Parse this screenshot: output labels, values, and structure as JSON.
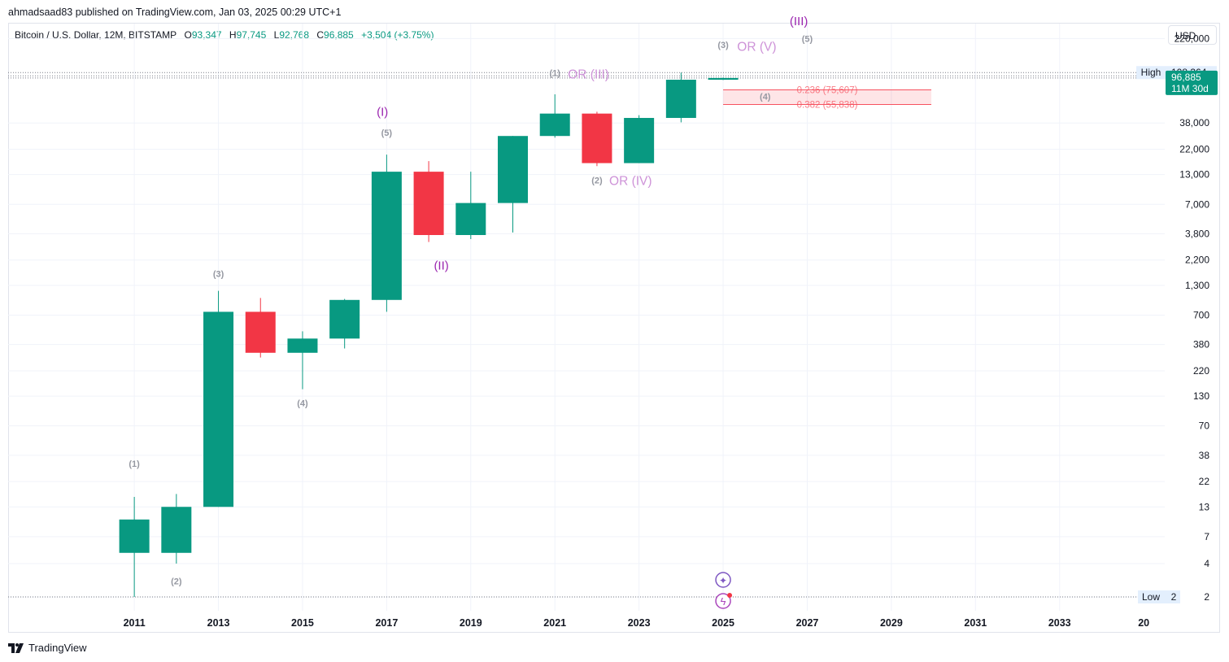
{
  "header": {
    "published_text": "ahmadsaad83 published on TradingView.com, Jan 03, 2025 00:29 UTC+1",
    "symbol": "Bitcoin / U.S. Dollar, 12M, BITSTAMP",
    "open_label": "O",
    "open": "93,347",
    "high_label": "H",
    "high": "97,745",
    "low_label": "L",
    "low": "92,768",
    "close_label": "C",
    "close": "96,885",
    "change": "+3,504 (+3.75%)"
  },
  "currency_button": "USD",
  "brand": {
    "name": "TradingView",
    "icon": "tradingview-logo-icon"
  },
  "colors": {
    "up": "#089981",
    "down": "#f23645",
    "grid": "#f0f3fa",
    "wave": "#9c27b0",
    "wave_light": "#ce93d8",
    "fib": "#f7525f"
  },
  "chart_data": {
    "type": "candlestick",
    "title": "Bitcoin / U.S. Dollar, 12M, BITSTAMP",
    "scale": "log",
    "ylim": [
      1.5,
      300000
    ],
    "xlim": [
      2008,
      2035.5
    ],
    "x_ticks": [
      "2011",
      "2013",
      "2015",
      "2017",
      "2019",
      "2021",
      "2023",
      "2025",
      "2027",
      "2029",
      "2031",
      "2033",
      "20"
    ],
    "y_ticks": [
      "220,000",
      "38,000",
      "22,000",
      "13,000",
      "7,000",
      "3,800",
      "2,200",
      "1,300",
      "700",
      "380",
      "220",
      "130",
      "70",
      "38",
      "22",
      "13",
      "7",
      "4",
      "2"
    ],
    "candles": [
      {
        "year": 2011,
        "open": 5,
        "high": 16,
        "low": 2,
        "close": 10
      },
      {
        "year": 2012,
        "open": 5,
        "high": 17,
        "low": 4,
        "close": 13
      },
      {
        "year": 2013,
        "open": 13,
        "high": 1160,
        "low": 13,
        "close": 750
      },
      {
        "year": 2014,
        "open": 750,
        "high": 1000,
        "low": 290,
        "close": 320
      },
      {
        "year": 2015,
        "open": 320,
        "high": 500,
        "low": 150,
        "close": 430
      },
      {
        "year": 2016,
        "open": 430,
        "high": 980,
        "low": 350,
        "close": 960
      },
      {
        "year": 2017,
        "open": 960,
        "high": 19700,
        "low": 750,
        "close": 13800
      },
      {
        "year": 2018,
        "open": 13800,
        "high": 17200,
        "low": 3200,
        "close": 3700
      },
      {
        "year": 2019,
        "open": 3700,
        "high": 13800,
        "low": 3400,
        "close": 7200
      },
      {
        "year": 2020,
        "open": 7200,
        "high": 29000,
        "low": 3900,
        "close": 29000
      },
      {
        "year": 2021,
        "open": 29000,
        "high": 69000,
        "low": 28000,
        "close": 46200
      },
      {
        "year": 2022,
        "open": 46200,
        "high": 48000,
        "low": 15500,
        "close": 16500
      },
      {
        "year": 2023,
        "open": 16500,
        "high": 44700,
        "low": 16500,
        "close": 42200
      },
      {
        "year": 2024,
        "open": 42200,
        "high": 108364,
        "low": 38500,
        "close": 93400
      },
      {
        "year": 2025,
        "open": 93347,
        "high": 97745,
        "low": 92768,
        "close": 96885
      }
    ],
    "high_marker": {
      "label": "High",
      "value": "108,364",
      "price": 108364
    },
    "low_marker": {
      "label": "Low",
      "value": "2",
      "price": 2
    },
    "price_tag": {
      "value": "96,885",
      "countdown": "11M 30d",
      "price": 96885
    },
    "fib_levels": [
      {
        "label": "0.236 (75,607)",
        "price": 75607
      },
      {
        "label": "0.382 (55,838)",
        "price": 55838
      }
    ],
    "fib_zone": {
      "x_start": 2025.0,
      "x_end": 2029.95
    },
    "wave_labels": [
      {
        "text": "(1)",
        "x": 2011,
        "y": 30,
        "style": "minor"
      },
      {
        "text": "(2)",
        "x": 2012,
        "y": 2.6,
        "style": "minor"
      },
      {
        "text": "(3)",
        "x": 2013,
        "y": 1550,
        "style": "minor"
      },
      {
        "text": "(4)",
        "x": 2015,
        "y": 105,
        "style": "minor"
      },
      {
        "text": "(5)",
        "x": 2017,
        "y": 29000,
        "style": "minor"
      },
      {
        "text": "(I)",
        "x": 2016.9,
        "y": 44000,
        "style": "major"
      },
      {
        "text": "(II)",
        "x": 2018.3,
        "y": 1800,
        "style": "major"
      },
      {
        "text": "(1)",
        "x": 2021,
        "y": 101000,
        "style": "minor"
      },
      {
        "text": "OR (III)",
        "x": 2021.8,
        "y": 96000,
        "style": "alt"
      },
      {
        "text": "(2)",
        "x": 2022,
        "y": 10800,
        "style": "minor"
      },
      {
        "text": "OR (IV)",
        "x": 2022.8,
        "y": 10500,
        "style": "alt"
      },
      {
        "text": "(3)",
        "x": 2025,
        "y": 180000,
        "style": "minor"
      },
      {
        "text": "OR (V)",
        "x": 2025.8,
        "y": 170000,
        "style": "alt"
      },
      {
        "text": "(4)",
        "x": 2026,
        "y": 62000,
        "style": "minor"
      },
      {
        "text": "(III)",
        "x": 2026.8,
        "y": 290000,
        "style": "major"
      },
      {
        "text": "(5)",
        "x": 2027,
        "y": 205000,
        "style": "minor"
      }
    ],
    "bottom_icons": [
      {
        "name": "sparkle-icon",
        "glyph": "✦"
      },
      {
        "name": "lightning-icon",
        "glyph": "ϟ"
      }
    ]
  }
}
